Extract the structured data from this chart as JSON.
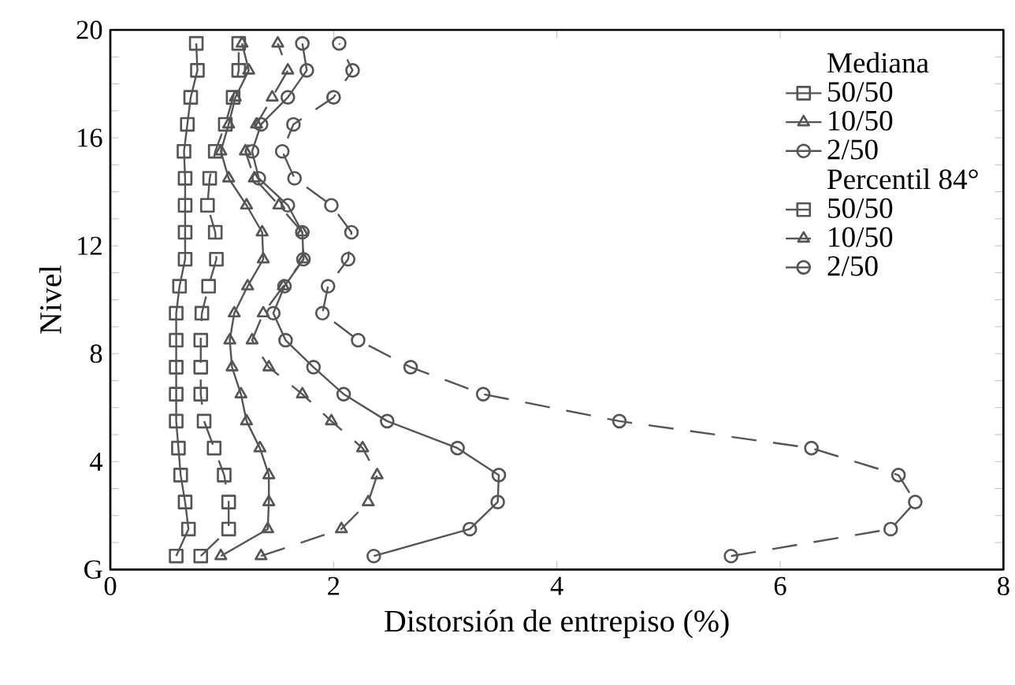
{
  "chart_data": {
    "type": "line",
    "xlabel": "Distorsión de entrepiso (%)",
    "ylabel": "Nivel",
    "annotations": [
      "Mediana",
      "Percentil 84°"
    ],
    "x": [
      0.5,
      1.5,
      2.5,
      3.5,
      4.5,
      5.5,
      6.5,
      7.5,
      8.5,
      9.5,
      10.5,
      11.5,
      12.5,
      13.5,
      14.5,
      15.5,
      16.5,
      17.5,
      18.5,
      19.5
    ],
    "orientation": "horizontal",
    "series": [
      {
        "name": "50/50",
        "color": "#555555",
        "marker": "square",
        "line_style": "solid",
        "values": [
          0.59,
          0.7,
          0.67,
          0.63,
          0.61,
          0.59,
          0.59,
          0.59,
          0.59,
          0.59,
          0.62,
          0.67,
          0.67,
          0.67,
          0.67,
          0.66,
          0.69,
          0.72,
          0.78,
          0.77
        ]
      },
      {
        "name": "10/50",
        "color": "#555555",
        "marker": "triangle",
        "line_style": "solid",
        "values": [
          0.99,
          1.41,
          1.42,
          1.42,
          1.34,
          1.22,
          1.17,
          1.09,
          1.07,
          1.11,
          1.23,
          1.37,
          1.36,
          1.22,
          1.06,
          0.99,
          1.06,
          1.12,
          1.24,
          1.18
        ]
      },
      {
        "name": "2/50",
        "color": "#555555",
        "marker": "circle",
        "line_style": "solid",
        "values": [
          2.36,
          3.22,
          3.47,
          3.48,
          3.11,
          2.48,
          2.09,
          1.82,
          1.57,
          1.46,
          1.56,
          1.73,
          1.72,
          1.59,
          1.33,
          1.27,
          1.35,
          1.59,
          1.76,
          1.72
        ]
      },
      {
        "name": "50/50",
        "color": "#555555",
        "marker": "square",
        "line_style": "dashed",
        "values": [
          0.81,
          1.06,
          1.06,
          1.02,
          0.93,
          0.84,
          0.81,
          0.81,
          0.81,
          0.82,
          0.88,
          0.95,
          0.94,
          0.87,
          0.89,
          0.94,
          1.03,
          1.1,
          1.15,
          1.15
        ]
      },
      {
        "name": "10/50",
        "color": "#555555",
        "marker": "triangle",
        "line_style": "dashed",
        "values": [
          1.35,
          2.07,
          2.31,
          2.39,
          2.26,
          1.98,
          1.72,
          1.42,
          1.27,
          1.37,
          1.55,
          1.73,
          1.72,
          1.51,
          1.29,
          1.21,
          1.31,
          1.45,
          1.59,
          1.5
        ]
      },
      {
        "name": "2/50",
        "color": "#555555",
        "marker": "circle",
        "line_style": "dashed",
        "values": [
          5.56,
          6.99,
          7.21,
          7.06,
          6.28,
          4.56,
          3.34,
          2.69,
          2.22,
          1.9,
          1.95,
          2.13,
          2.16,
          1.98,
          1.65,
          1.54,
          1.64,
          2.0,
          2.17,
          2.05
        ]
      }
    ],
    "xlim": [
      0,
      8
    ],
    "xticks": [
      0,
      2,
      4,
      6,
      8
    ],
    "ylim": [
      0,
      20
    ],
    "yticks": [
      {
        "value": 0,
        "label": "G"
      },
      {
        "value": 1,
        "label": null
      },
      {
        "value": 2,
        "label": null
      },
      {
        "value": 3,
        "label": null
      },
      4,
      {
        "value": 5,
        "label": null
      },
      {
        "value": 6,
        "label": null
      },
      {
        "value": 7,
        "label": null
      },
      8,
      {
        "value": 9,
        "label": null
      },
      {
        "value": 10,
        "label": null
      },
      {
        "value": 11,
        "label": null
      },
      12,
      {
        "value": 13,
        "label": null
      },
      {
        "value": 14,
        "label": null
      },
      {
        "value": 15,
        "label": null
      },
      16,
      {
        "value": 17,
        "label": null
      },
      {
        "value": 18,
        "label": null
      },
      {
        "value": 19,
        "label": null
      },
      20
    ],
    "grid": false,
    "legend": "top right"
  }
}
